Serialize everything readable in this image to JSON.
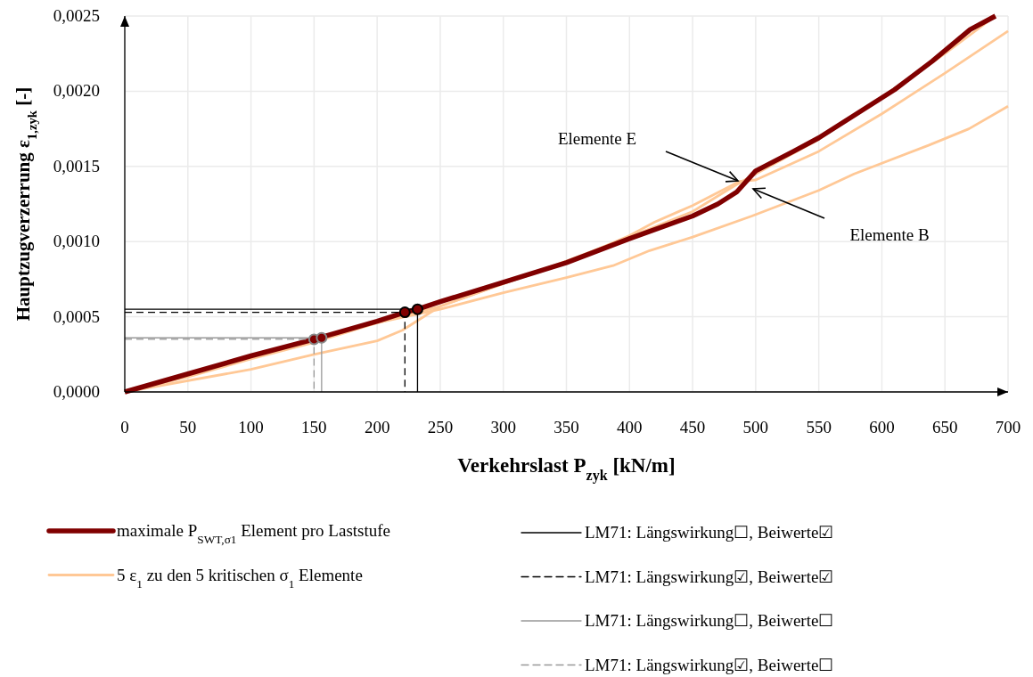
{
  "chart_data": {
    "type": "line",
    "xlabel": "Verkehrslast P$_{zyk}$ [kN/m]",
    "ylabel": "Hauptzugverzerrung ε$_{1,zyk}$ [-]",
    "xlim": [
      0,
      700
    ],
    "xticks": [
      0,
      50,
      100,
      150,
      200,
      250,
      300,
      350,
      400,
      450,
      500,
      550,
      600,
      650,
      700
    ],
    "ylim": [
      0,
      0.0025
    ],
    "yticks": [
      {
        "value": 0,
        "label": "0,0000"
      },
      {
        "value": 0.0005,
        "label": "0,0005"
      },
      {
        "value": 0.001,
        "label": "0,0010"
      },
      {
        "value": 0.0015,
        "label": "0,0015"
      },
      {
        "value": 0.002,
        "label": "0,0020"
      },
      {
        "value": 0.0025,
        "label": "0,0025"
      }
    ],
    "grid": true,
    "legend": "bottom",
    "series": [
      {
        "name": "maximale P$_{SWT,σ1}$ Element pro Laststufe",
        "color": "#800000",
        "x": [
          0,
          50,
          100,
          150,
          200,
          222,
          232,
          250,
          300,
          350,
          400,
          450,
          470,
          485,
          500,
          530,
          550,
          580,
          610,
          640,
          670,
          690
        ],
        "values": [
          0,
          0.00012,
          0.00024,
          0.00035,
          0.00047,
          0.00053,
          0.00055,
          0.0006,
          0.00073,
          0.00086,
          0.00102,
          0.00117,
          0.00125,
          0.00133,
          0.00147,
          0.0016,
          0.00169,
          0.00185,
          0.00201,
          0.0022,
          0.00241,
          0.0025
        ]
      },
      {
        "name": "5 ε$_{1}$ zu den 5 kritischen σ$_{1}$ Elemente",
        "color": "#ffc896",
        "x": [
          0,
          100,
          150,
          200,
          220,
          250,
          300,
          350,
          400,
          420,
          450,
          487,
          500,
          550,
          600,
          650,
          700
        ],
        "values": [
          0,
          0.00015,
          0.00025,
          0.00034,
          0.00041,
          0.00057,
          0.00072,
          0.00086,
          0.00104,
          0.00113,
          0.00124,
          0.0014,
          0.00141,
          0.0016,
          0.00185,
          0.00212,
          0.0024
        ]
      },
      {
        "color": "#ffc896",
        "x": [
          0,
          50,
          100,
          150,
          200,
          250,
          300,
          350,
          387,
          416,
          450,
          497,
          550,
          578,
          637,
          669,
          700
        ],
        "values": [
          0,
          0.0001,
          0.00022,
          0.00033,
          0.00046,
          0.00055,
          0.00066,
          0.00076,
          0.00084,
          0.00094,
          0.00103,
          0.00117,
          0.00134,
          0.00145,
          0.00164,
          0.00175,
          0.0019
        ]
      },
      {
        "color": "#ffc896",
        "x": [
          0,
          100,
          200,
          250,
          300,
          350,
          400,
          450,
          485,
          500,
          550,
          600,
          650,
          690
        ],
        "values": [
          0,
          0.00023,
          0.00046,
          0.00057,
          0.00072,
          0.00087,
          0.00103,
          0.0012,
          0.00138,
          0.00145,
          0.00168,
          0.00196,
          0.00225,
          0.0025
        ]
      },
      {
        "name": "LM71: Längswirkung☐, Beiwerte☑",
        "color": "#000000",
        "line_style": "solid",
        "x": [
          0,
          232,
          232
        ],
        "values": [
          0.00055,
          0.00055,
          0
        ]
      },
      {
        "name": "LM71: Längswirkung☑, Beiwerte☑",
        "color": "#000000",
        "line_style": "dashed",
        "x": [
          0,
          222,
          222
        ],
        "values": [
          0.00053,
          0.00053,
          0
        ]
      },
      {
        "name": "LM71: Längswirkung☐, Beiwerte☐",
        "color": "#999999",
        "line_style": "solid",
        "x": [
          0,
          156,
          156
        ],
        "values": [
          0.00036,
          0.00036,
          0
        ]
      },
      {
        "name": "LM71: Längswirkung☑, Beiwerte☐",
        "color": "#999999",
        "line_style": "dashed",
        "x": [
          0,
          150,
          150
        ],
        "values": [
          0.00035,
          0.00035,
          0
        ]
      },
      {
        "type": "scatter",
        "color": "#800000",
        "marker": "circle",
        "x": [
          150,
          156,
          222,
          232
        ],
        "values": [
          0.00035,
          0.00036,
          0.00053,
          0.00055
        ]
      }
    ],
    "annotations": [
      "Elemente E",
      "Elemente B"
    ]
  }
}
